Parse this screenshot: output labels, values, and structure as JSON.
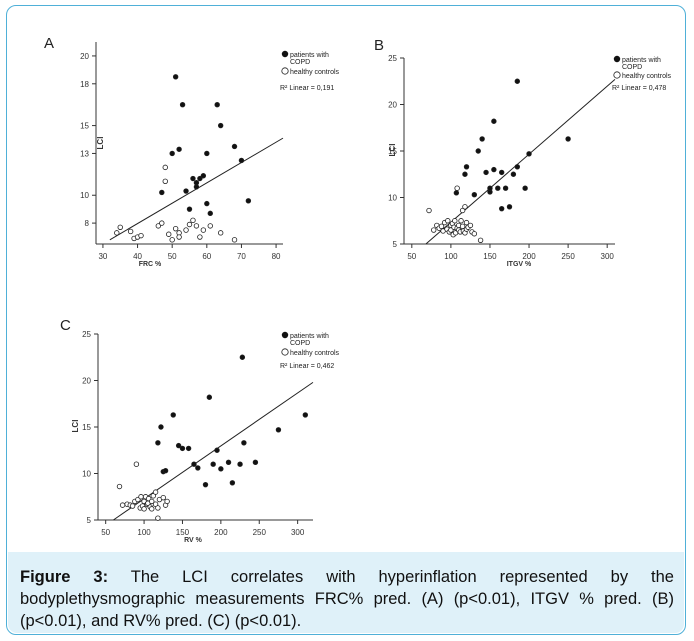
{
  "caption": {
    "label": "Figure 3:",
    "text": " The LCI correlates with hyperinflation represented by the bodyplethysmographic measurements FRC% pred. (A) (p<0.01), ITGV % pred. (B) (p<0.01), and RV% pred. (C) (p<0.01)."
  },
  "chart_data": [
    {
      "type": "scatter",
      "panel_label": "A",
      "xlabel": "FRC %",
      "ylabel": "LCI",
      "xlim": [
        28,
        82
      ],
      "ylim": [
        6.5,
        21
      ],
      "xticks": [
        30,
        40,
        50,
        60,
        70,
        80
      ],
      "yticks": [
        8,
        10,
        13,
        15,
        18,
        20
      ],
      "legend": [
        "patients with COPD",
        "healthy controls"
      ],
      "legend_position": "top-right",
      "annotation": "R² Linear = 0,191",
      "series": [
        {
          "name": "patients with COPD",
          "marker": "filled",
          "x": [
            47,
            50,
            51,
            52,
            53,
            54,
            55,
            56,
            57,
            57,
            58,
            59,
            60,
            60,
            61,
            63,
            64,
            68,
            70,
            72
          ],
          "y": [
            10.2,
            13.0,
            18.5,
            13.3,
            16.5,
            10.3,
            9.0,
            11.2,
            10.6,
            10.9,
            11.2,
            11.4,
            9.4,
            13.0,
            8.7,
            16.5,
            15.0,
            13.5,
            12.5,
            9.6
          ]
        },
        {
          "name": "healthy controls",
          "marker": "open",
          "x": [
            34,
            35,
            38,
            39,
            40,
            41,
            46,
            47,
            48,
            48,
            49,
            50,
            51,
            52,
            52,
            54,
            55,
            56,
            57,
            58,
            59,
            61,
            64,
            68
          ],
          "y": [
            7.3,
            7.7,
            7.4,
            6.9,
            7.0,
            7.1,
            7.8,
            8.0,
            11.0,
            12.0,
            7.2,
            6.8,
            7.6,
            7.3,
            7.0,
            7.5,
            7.9,
            8.2,
            7.8,
            7.0,
            7.5,
            7.8,
            7.3,
            6.8
          ]
        }
      ],
      "regression_line": {
        "x": [
          32,
          82
        ],
        "y": [
          6.8,
          14.1
        ]
      }
    },
    {
      "type": "scatter",
      "panel_label": "B",
      "xlabel": "ITGV %",
      "ylabel": "LCI",
      "xlim": [
        40,
        310
      ],
      "ylim": [
        5,
        25
      ],
      "xticks": [
        50,
        100,
        150,
        200,
        250,
        300
      ],
      "yticks": [
        5,
        10,
        15,
        20,
        25
      ],
      "legend": [
        "patients with COPD",
        "healthy controls"
      ],
      "legend_position": "top-right",
      "annotation": "R² Linear = 0,478",
      "series": [
        {
          "name": "patients with COPD",
          "marker": "filled",
          "x": [
            107,
            118,
            120,
            130,
            135,
            140,
            145,
            150,
            150,
            155,
            155,
            160,
            165,
            165,
            170,
            175,
            180,
            185,
            185,
            195,
            200,
            250
          ],
          "y": [
            10.5,
            12.5,
            13.3,
            10.3,
            15.0,
            16.3,
            12.7,
            10.6,
            11.0,
            13.0,
            18.2,
            11.0,
            12.7,
            8.8,
            11.0,
            9.0,
            12.5,
            22.5,
            13.3,
            11.0,
            14.7,
            16.3
          ]
        },
        {
          "name": "healthy controls",
          "marker": "open",
          "x": [
            72,
            78,
            82,
            85,
            88,
            90,
            92,
            95,
            96,
            98,
            100,
            100,
            102,
            103,
            104,
            105,
            106,
            108,
            108,
            110,
            110,
            112,
            113,
            115,
            115,
            116,
            118,
            118,
            120,
            120,
            122,
            125,
            127,
            130,
            138
          ],
          "y": [
            8.6,
            6.5,
            7.0,
            6.7,
            6.9,
            6.4,
            7.3,
            6.6,
            7.5,
            6.3,
            7.0,
            6.5,
            7.2,
            6.0,
            6.8,
            7.5,
            6.2,
            6.7,
            11.0,
            6.5,
            7.0,
            6.3,
            7.5,
            6.9,
            8.6,
            6.4,
            9.0,
            6.2,
            7.3,
            6.6,
            6.8,
            7.0,
            6.3,
            6.1,
            5.4
          ]
        }
      ],
      "regression_line": {
        "x": [
          68,
          310
        ],
        "y": [
          5.0,
          22.7
        ]
      }
    },
    {
      "type": "scatter",
      "panel_label": "C",
      "xlabel": "RV %",
      "ylabel": "LCI",
      "xlim": [
        40,
        320
      ],
      "ylim": [
        5,
        25
      ],
      "xticks": [
        50,
        100,
        150,
        200,
        250,
        300
      ],
      "yticks": [
        5,
        10,
        15,
        20,
        25
      ],
      "legend": [
        "patients with COPD",
        "healthy controls"
      ],
      "legend_position": "top-right",
      "annotation": "R² Linear = 0,462",
      "series": [
        {
          "name": "patients with COPD",
          "marker": "filled",
          "x": [
            118,
            122,
            125,
            128,
            138,
            145,
            150,
            158,
            165,
            170,
            180,
            185,
            190,
            195,
            200,
            210,
            215,
            225,
            228,
            230,
            245,
            275,
            310
          ],
          "y": [
            13.3,
            15.0,
            10.2,
            10.3,
            16.3,
            13.0,
            12.7,
            12.7,
            11.0,
            10.6,
            8.8,
            18.2,
            11.0,
            12.5,
            10.5,
            11.2,
            9.0,
            11.0,
            22.5,
            13.3,
            11.2,
            14.7,
            16.3
          ]
        },
        {
          "name": "healthy controls",
          "marker": "open",
          "x": [
            68,
            72,
            78,
            82,
            85,
            88,
            90,
            92,
            95,
            96,
            98,
            100,
            100,
            102,
            104,
            105,
            106,
            108,
            110,
            110,
            112,
            115,
            115,
            118,
            118,
            120,
            125,
            128,
            130
          ],
          "y": [
            8.6,
            6.6,
            6.7,
            6.6,
            6.5,
            7.0,
            11.0,
            7.2,
            6.3,
            7.5,
            6.5,
            7.0,
            6.2,
            7.5,
            6.7,
            6.8,
            7.3,
            6.4,
            7.0,
            6.2,
            7.6,
            6.7,
            8.0,
            6.3,
            5.2,
            7.2,
            7.4,
            6.6,
            7.0
          ]
        }
      ],
      "regression_line": {
        "x": [
          60,
          320
        ],
        "y": [
          5.0,
          19.8
        ]
      }
    }
  ]
}
